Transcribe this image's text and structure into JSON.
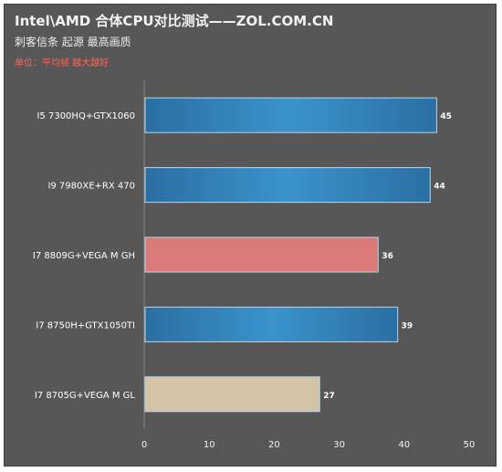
{
  "header": {
    "title": "Intel\\AMD 合体CPU对比测试——ZOL.COM.CN",
    "subtitle": "刺客信条 起源  最高画质",
    "unit_note": "单位：平均帧   越大越好"
  },
  "colors": {
    "background": "#575757",
    "blue": "#2f7fb8",
    "pink": "#d97a78",
    "beige": "#d5c3a5"
  },
  "chart_data": {
    "type": "bar",
    "orientation": "horizontal",
    "categories": [
      "I5 7300HQ+GTX1060",
      "I9 7980XE+RX 470",
      "I7 8809G+VEGA M GH",
      "I7 8750H+GTX1050TI",
      "I7 8705G+VEGA M GL"
    ],
    "values": [
      45,
      44,
      36,
      39,
      27
    ],
    "bar_colors": [
      "#2f7fb8",
      "#2f7fb8",
      "#d97a78",
      "#2f7fb8",
      "#d5c3a5"
    ],
    "xlim": [
      0,
      50
    ],
    "xticks": [
      0,
      10,
      20,
      30,
      40,
      50
    ],
    "title": "Intel\\AMD 合体CPU对比测试——ZOL.COM.CN",
    "xlabel": "",
    "ylabel": "",
    "grid": false,
    "legend": false
  }
}
